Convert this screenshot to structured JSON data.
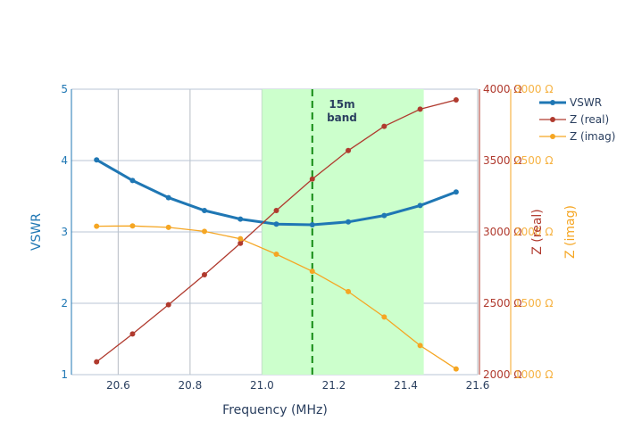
{
  "chart_data": {
    "type": "line",
    "xlabel": "Frequency (MHz)",
    "ylabel_left": "VSWR",
    "ylabel_right1": "Z (real)",
    "ylabel_right2": "Z (imag)",
    "xlim": [
      20.47,
      21.6
    ],
    "ylim_vswr": [
      1,
      5
    ],
    "ylim_real": [
      2000,
      4000
    ],
    "ylim_imag": [
      1000,
      2000
    ],
    "x_ticks": [
      "20.6",
      "20.8",
      "21.0",
      "21.2",
      "21.4",
      "21.6"
    ],
    "vswr_ticks": [
      "1",
      "2",
      "3",
      "4",
      "5"
    ],
    "real_ticks": [
      "2000 Ω",
      "2500 Ω",
      "3000 Ω",
      "3500 Ω",
      "4000 Ω"
    ],
    "imag_ticks": [
      "1000 Ω",
      "1500 Ω",
      "2000 Ω",
      "2500 Ω",
      "3000 Ω"
    ],
    "band": {
      "x0": 21.0,
      "x1": 21.45,
      "label_line1": "15m",
      "label_line2": "band",
      "color": "#ccffcc"
    },
    "marker_x": 21.14,
    "x": [
      20.54,
      20.64,
      20.74,
      20.84,
      20.94,
      21.04,
      21.14,
      21.24,
      21.34,
      21.44,
      21.54
    ],
    "series": [
      {
        "name": "VSWR",
        "axis": "vswr",
        "color": "#1f77b4",
        "values": [
          4.01,
          3.72,
          3.48,
          3.3,
          3.18,
          3.11,
          3.1,
          3.14,
          3.23,
          3.37,
          3.56
        ]
      },
      {
        "name": "Z (real)",
        "axis": "real",
        "color": "#b03a2e",
        "values": [
          2090,
          2285,
          2490,
          2700,
          2920,
          3150,
          3370,
          3570,
          3740,
          3860,
          3925
        ]
      },
      {
        "name": "Z (imag)",
        "axis": "imag",
        "color": "#f5a623",
        "values": [
          1520,
          1521,
          1516,
          1502,
          1476,
          1422,
          1362,
          1291,
          1202,
          1102,
          1020
        ]
      }
    ],
    "legend_position": "top-right",
    "grid": true
  }
}
